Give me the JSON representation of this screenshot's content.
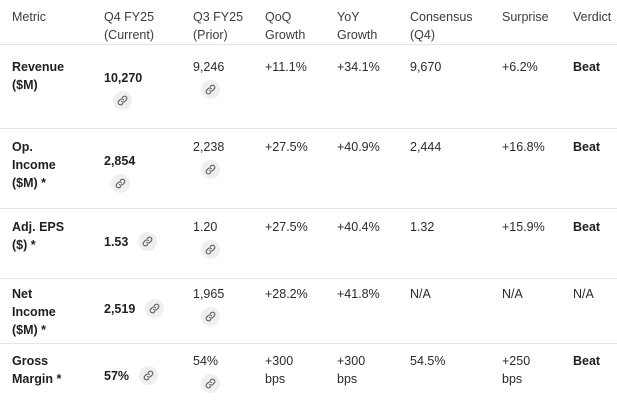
{
  "headers": [
    "Metric",
    "Q4 FY25\n(Current)",
    "Q3 FY25\n(Prior)",
    "QoQ\nGrowth",
    "YoY\nGrowth",
    "Consensus\n(Q4)",
    "Surprise",
    "Verdict"
  ],
  "rows": [
    {
      "metric": "Revenue\n($M)",
      "current": "10,270",
      "prior": "9,246",
      "qoq": "+11.1%",
      "yoy": "+34.1%",
      "consensus": "9,670",
      "surprise": "+6.2%",
      "verdict": "Beat"
    },
    {
      "metric": "Op.\nIncome\n($M) *",
      "current": "2,854",
      "prior": "2,238",
      "qoq": "+27.5%",
      "yoy": "+40.9%",
      "consensus": "2,444",
      "surprise": "+16.8%",
      "verdict": "Beat"
    },
    {
      "metric": "Adj. EPS\n($) *",
      "current": "1.53",
      "prior": "1.20",
      "qoq": "+27.5%",
      "yoy": "+40.4%",
      "consensus": "1.32",
      "surprise": "+15.9%",
      "verdict": "Beat"
    },
    {
      "metric": "Net\nIncome\n($M) *",
      "current": "2,519",
      "prior": "1,965",
      "qoq": "+28.2%",
      "yoy": "+41.8%",
      "consensus": "N/A",
      "surprise": "N/A",
      "verdict": "N/A"
    },
    {
      "metric": "Gross\nMargin *",
      "current": "57%",
      "prior": "54%",
      "qoq": "+300\nbps",
      "yoy": "+300\nbps",
      "consensus": "54.5%",
      "surprise": "+250\nbps",
      "verdict": "Beat"
    }
  ],
  "icons": {
    "source_link": "link-icon"
  },
  "colors": {
    "text": "#1f1f1f",
    "chip_bg": "#efefef",
    "divider": "#e4e4e4"
  }
}
